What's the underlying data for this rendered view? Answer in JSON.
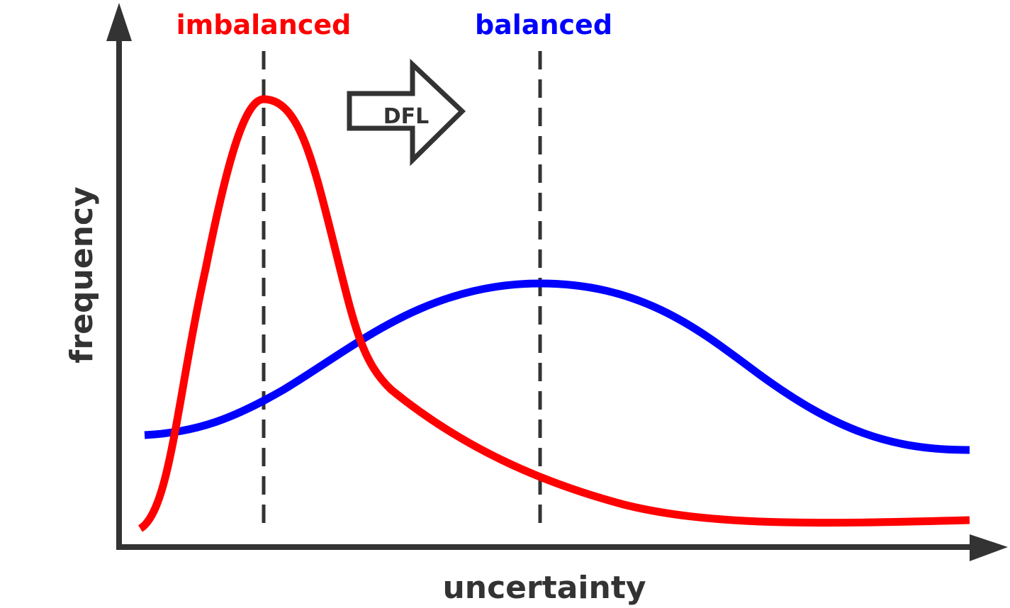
{
  "axes": {
    "x_label": "uncertainty",
    "y_label": "frequency"
  },
  "annotations": {
    "imbalanced_label": "imbalanced",
    "balanced_label": "balanced",
    "transition_arrow_label": "DFL"
  },
  "colors": {
    "imbalanced": "#ff0000",
    "balanced": "#0000ff",
    "axis": "#333333",
    "reference_line": "#333333"
  },
  "curves": {
    "imbalanced": "sharp peak at low uncertainty with a long right tail",
    "balanced": "broad peak at higher uncertainty"
  }
}
